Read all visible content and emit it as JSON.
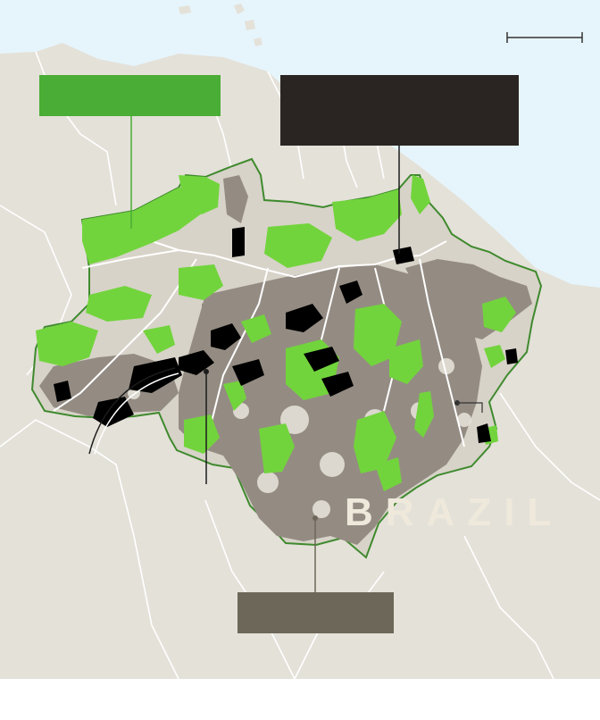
{
  "map": {
    "country_label": "BRAZIL",
    "colors": {
      "ocean": "#e6f5fb",
      "land": "#e4e1d9",
      "land_inner": "#e9e6dd",
      "border": "#ffffff",
      "amazon_fill": "#d7d3c8",
      "amazon_outline": "#3f8a2e",
      "degraded": "#948c83",
      "protected_green": "#72d43c",
      "black_areas": "#000000",
      "rivers": "#ffffff",
      "callout_green": "#4aad35",
      "callout_dark": "#2a2522",
      "callout_gray": "#6c6758",
      "leader_green": "#4aad35",
      "leader_dark": "#1c1c1c",
      "leader_gray": "#6c6758"
    },
    "callouts": {
      "green_box_text": "",
      "dark_box_text": "",
      "gray_box_text": ""
    },
    "scale_bar_label": ""
  }
}
